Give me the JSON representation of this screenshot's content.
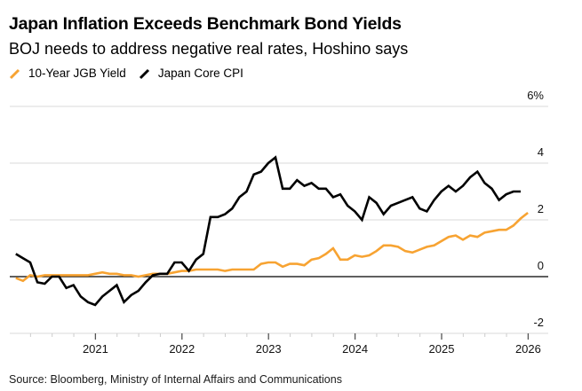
{
  "header": {
    "title": "Japan Inflation Exceeds Benchmark Bond Yields",
    "subtitle": "BOJ needs to address negative real rates, Hoshino says"
  },
  "footer": {
    "source": "Source: Bloomberg, Ministry of Internal Affairs and Communications"
  },
  "colors": {
    "jgb": "#f7a332",
    "cpi": "#000000",
    "grid": "#e0e0e0",
    "zero_line": "#000000"
  },
  "chart_data": {
    "type": "line",
    "title": "Japan Inflation Exceeds Benchmark Bond Yields",
    "subtitle": "BOJ needs to address negative real rates, Hoshino says",
    "xlabel": "",
    "ylabel": "",
    "y_unit": "%",
    "ylim": [
      -2,
      6
    ],
    "yticks": [
      6,
      4,
      2,
      0,
      -2
    ],
    "ytick_labels": [
      "6%",
      "4",
      "2",
      "0",
      "-2"
    ],
    "y_axis_side": "right",
    "xlim": [
      2020.0,
      2026.25
    ],
    "xticks": [
      2021,
      2022,
      2023,
      2024,
      2025,
      2026
    ],
    "xtick_labels": [
      "2021",
      "2022",
      "2023",
      "2024",
      "2025",
      "2026"
    ],
    "x_minor_ticks": "quarterly",
    "grid": true,
    "legend_position": "top-left",
    "series": [
      {
        "name": "10-Year JGB Yield",
        "color": "#f7a332",
        "start": 2020.08,
        "step_months": 1,
        "values": [
          -0.05,
          -0.15,
          0.05,
          0.0,
          0.05,
          0.05,
          0.05,
          0.05,
          0.05,
          0.05,
          0.05,
          0.1,
          0.15,
          0.1,
          0.1,
          0.05,
          0.05,
          0.0,
          0.05,
          0.1,
          0.1,
          0.1,
          0.15,
          0.2,
          0.2,
          0.25,
          0.25,
          0.25,
          0.25,
          0.2,
          0.25,
          0.25,
          0.25,
          0.25,
          0.45,
          0.5,
          0.5,
          0.35,
          0.45,
          0.45,
          0.4,
          0.6,
          0.65,
          0.8,
          1.0,
          0.6,
          0.6,
          0.75,
          0.7,
          0.75,
          0.9,
          1.1,
          1.1,
          1.05,
          0.9,
          0.85,
          0.95,
          1.05,
          1.1,
          1.25,
          1.4,
          1.45,
          1.3,
          1.45,
          1.4,
          1.55,
          1.6,
          1.65,
          1.65,
          1.8,
          2.05,
          2.25
        ]
      },
      {
        "name": "Japan Core CPI",
        "color": "#000000",
        "start": 2020.08,
        "step_months": 1,
        "values": [
          0.8,
          0.65,
          0.5,
          -0.2,
          -0.25,
          0.0,
          0.0,
          -0.4,
          -0.3,
          -0.7,
          -0.9,
          -1.0,
          -0.7,
          -0.5,
          -0.3,
          -0.9,
          -0.65,
          -0.5,
          -0.2,
          0.05,
          0.1,
          0.1,
          0.5,
          0.5,
          0.2,
          0.6,
          0.8,
          2.1,
          2.1,
          2.2,
          2.4,
          2.8,
          3.0,
          3.6,
          3.7,
          4.0,
          4.2,
          3.1,
          3.1,
          3.4,
          3.2,
          3.3,
          3.1,
          3.1,
          2.8,
          2.9,
          2.5,
          2.3,
          2.0,
          2.8,
          2.6,
          2.2,
          2.5,
          2.6,
          2.7,
          2.8,
          2.4,
          2.3,
          2.7,
          3.0,
          3.2,
          3.0,
          3.2,
          3.5,
          3.7,
          3.3,
          3.1,
          2.7,
          2.9,
          3.0,
          3.0
        ]
      }
    ]
  }
}
